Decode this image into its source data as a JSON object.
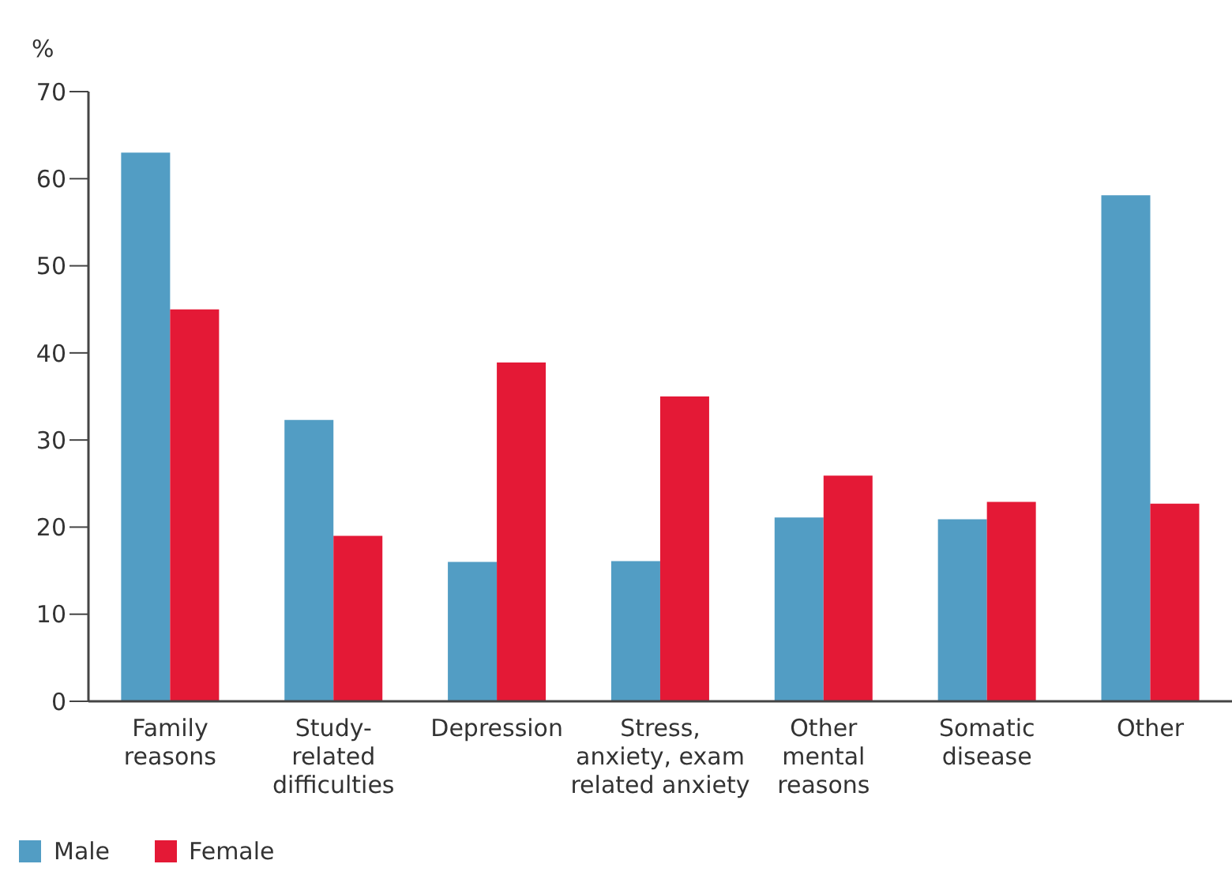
{
  "chart_data": {
    "type": "bar",
    "ylabel": "%",
    "categories": [
      "Family\nreasons",
      "Study-\nrelated\ndifficulties",
      "Depression",
      "Stress,\nanxiety, exam\nrelated anxiety",
      "Other\nmental\nreasons",
      "Somatic\ndisease",
      "Other"
    ],
    "series": [
      {
        "name": "Male",
        "color": "#529dc4",
        "values": [
          63,
          32.3,
          16,
          16.1,
          21.1,
          20.9,
          58.1
        ]
      },
      {
        "name": "Female",
        "color": "#e41936",
        "values": [
          45,
          19,
          38.9,
          35,
          25.9,
          22.9,
          22.7
        ]
      }
    ],
    "ylim": [
      0,
      70
    ],
    "yticks": [
      0,
      10,
      20,
      30,
      40,
      50,
      60,
      70
    ],
    "grid": false,
    "legend": "bottom left"
  }
}
